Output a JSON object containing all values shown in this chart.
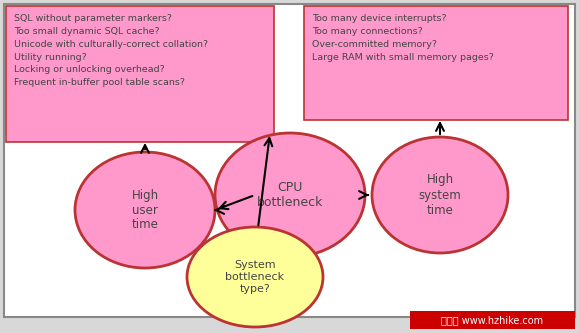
{
  "bg_color": "#d8d8d8",
  "border_color": "#888888",
  "pink_fill": "#ff99cc",
  "pink_box_fill": "#ffaacc",
  "yellow_fill": "#ffff99",
  "circle_edge": "#bb3333",
  "box_edge": "#bb3333",
  "text_color": "#444444",
  "left_box_text": "SQL without parameter markers?\nToo small dynamic SQL cache?\nUnicode with culturally-correct collation?\nUtility running?\nLocking or unlocking overhead?\nFrequent in-buffer pool table scans?",
  "right_box_text": "Too many device interrupts?\nToo many connections?\nOver-committed memory?\nLarge RAM with small memory pages?",
  "cpu_label": "CPU\nbottleneck",
  "high_user_label": "High\nuser\ntime",
  "high_system_label": "High\nsystem\ntime",
  "system_bottleneck_label": "System\nbottleneck\ntype?",
  "watermark": "智可网 www.hzhike.com",
  "watermark_bg": "#cc0000",
  "watermark_fg": "#ffffff",
  "figsize": [
    5.79,
    3.33
  ],
  "dpi": 100
}
